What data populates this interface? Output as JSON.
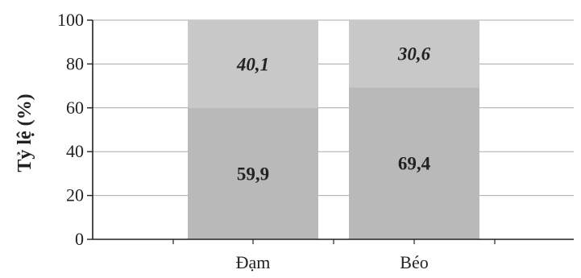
{
  "chart_data": {
    "type": "bar",
    "stacked": true,
    "categories": [
      "Đạm",
      "Béo"
    ],
    "series": [
      {
        "values": [
          59.9,
          69.4
        ],
        "labels": [
          "59,9",
          "69,4"
        ],
        "label_style": "bold",
        "color": "#b9b9b9"
      },
      {
        "values": [
          40.1,
          30.6
        ],
        "labels": [
          "40,1",
          "30,6"
        ],
        "label_style": "bold-italic",
        "color": "#c8c8c8"
      }
    ],
    "ylabel": "Tỷ lệ (%)",
    "xlabel": "",
    "ylim": [
      0,
      100
    ],
    "yticks": [
      0,
      20,
      40,
      60,
      80,
      100
    ],
    "ytick_labels": [
      "0",
      "20",
      "40",
      "60",
      "80",
      "100"
    ],
    "grid": true,
    "legend": "none"
  }
}
